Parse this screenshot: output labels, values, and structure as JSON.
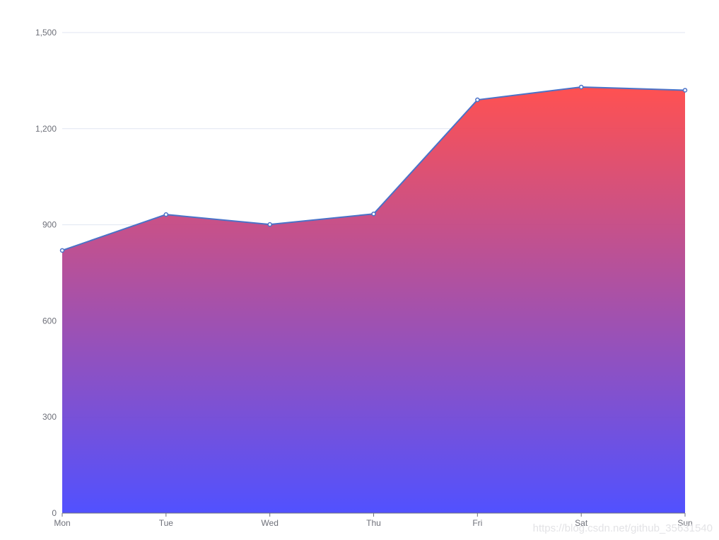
{
  "chart_data": {
    "type": "area",
    "categories": [
      "Mon",
      "Tue",
      "Wed",
      "Thu",
      "Fri",
      "Sat",
      "Sun"
    ],
    "series": [
      {
        "values": [
          820,
          932,
          901,
          934,
          1290,
          1330,
          1320
        ]
      }
    ],
    "y_ticks": [
      "0",
      "300",
      "600",
      "900",
      "1,200",
      "1,500"
    ],
    "ylim": [
      0,
      1500
    ],
    "grid": true,
    "colors": {
      "line": "#4a72c8",
      "area_top": "#ff4848",
      "area_bottom": "#4848ff",
      "grid": "#e0e6f1",
      "axis": "#6e7079"
    }
  },
  "watermark": "https://blog.csdn.net/github_35631540"
}
